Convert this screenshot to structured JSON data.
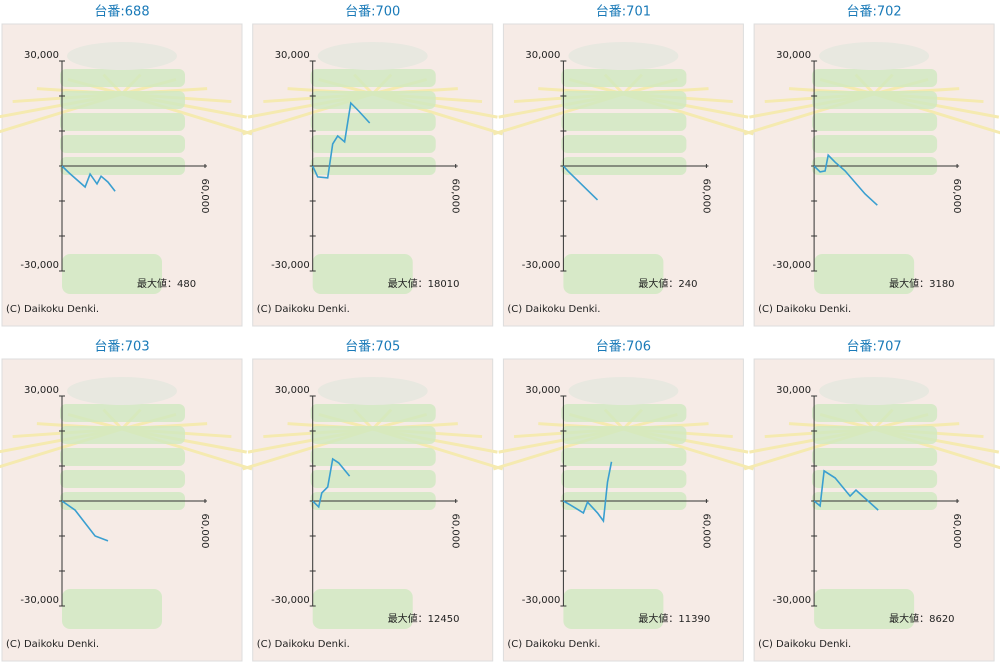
{
  "chart_data": [
    {
      "type": "line",
      "title": "台番:688",
      "x": [
        0,
        3000,
        9700,
        11800,
        14700,
        16400,
        19300,
        22300
      ],
      "values": [
        0,
        -2000,
        -6000,
        -2300,
        -5100,
        -2900,
        -4600,
        -7200
      ],
      "color": "#3a9fd0",
      "xlim": [
        0,
        60000
      ],
      "ylim": [
        -30000,
        30000
      ],
      "xticks": [
        {
          "value": 60000,
          "label": "60,000"
        }
      ],
      "yticks": [
        {
          "value": 30000,
          "label": "30,000"
        },
        {
          "value": -30000,
          "label": "-30,000"
        }
      ],
      "minor_yticks": [
        20000,
        10000,
        0,
        -10000,
        -20000
      ],
      "max_label": "最大値：480",
      "copyright": "(C) Daikoku Denki."
    },
    {
      "type": "line",
      "title": "台番:700",
      "x": [
        0,
        2100,
        6300,
        8400,
        10500,
        13400,
        16000,
        19300,
        23900
      ],
      "values": [
        0,
        -3100,
        -3400,
        6300,
        8600,
        6900,
        18000,
        15700,
        12300
      ],
      "color": "#3a9fd0",
      "xlim": [
        0,
        60000
      ],
      "ylim": [
        -30000,
        30000
      ],
      "xticks": [
        {
          "value": 60000,
          "label": "60,000"
        }
      ],
      "yticks": [
        {
          "value": 30000,
          "label": "30,000"
        },
        {
          "value": -30000,
          "label": "-30,000"
        }
      ],
      "minor_yticks": [
        20000,
        10000,
        0,
        -10000,
        -20000
      ],
      "max_label": "最大値：18010",
      "copyright": "(C) Daikoku Denki."
    },
    {
      "type": "line",
      "title": "台番:701",
      "x": [
        0,
        2000,
        14300
      ],
      "values": [
        0,
        -1500,
        -9700
      ],
      "color": "#3a9fd0",
      "xlim": [
        0,
        60000
      ],
      "ylim": [
        -30000,
        30000
      ],
      "xticks": [
        {
          "value": 60000,
          "label": "60,000"
        }
      ],
      "yticks": [
        {
          "value": 30000,
          "label": "30,000"
        },
        {
          "value": -30000,
          "label": "-30,000"
        }
      ],
      "minor_yticks": [
        20000,
        10000,
        0,
        -10000,
        -20000
      ],
      "max_label": "最大値：240",
      "copyright": "(C) Daikoku Denki."
    },
    {
      "type": "line",
      "title": "台番:702",
      "x": [
        0,
        2500,
        4600,
        5900,
        8800,
        13000,
        21400,
        26500
      ],
      "values": [
        0,
        -1700,
        -1400,
        3100,
        1100,
        -1400,
        -8000,
        -11200
      ],
      "color": "#3a9fd0",
      "xlim": [
        0,
        60000
      ],
      "ylim": [
        -30000,
        30000
      ],
      "xticks": [
        {
          "value": 60000,
          "label": "60,000"
        }
      ],
      "yticks": [
        {
          "value": 30000,
          "label": "30,000"
        },
        {
          "value": -30000,
          "label": "-30,000"
        }
      ],
      "minor_yticks": [
        20000,
        10000,
        0,
        -10000,
        -20000
      ],
      "max_label": "最大値：3180",
      "copyright": "(C) Daikoku Denki."
    },
    {
      "type": "line",
      "title": "台番:703",
      "x": [
        0,
        5500,
        13900,
        19300
      ],
      "values": [
        0,
        -2600,
        -10000,
        -11400
      ],
      "color": "#3a9fd0",
      "xlim": [
        0,
        60000
      ],
      "ylim": [
        -30000,
        30000
      ],
      "xticks": [
        {
          "value": 60000,
          "label": "60,000"
        }
      ],
      "yticks": [
        {
          "value": 30000,
          "label": "30,000"
        },
        {
          "value": -30000,
          "label": "-30,000"
        }
      ],
      "minor_yticks": [
        20000,
        10000,
        0,
        -10000,
        -20000
      ],
      "copyright": "(C) Daikoku Denki."
    },
    {
      "type": "line",
      "title": "台番:705",
      "x": [
        0,
        2500,
        3800,
        6300,
        8400,
        10900,
        15500
      ],
      "values": [
        0,
        -1700,
        2300,
        4000,
        12000,
        10900,
        7100
      ],
      "color": "#3a9fd0",
      "xlim": [
        0,
        60000
      ],
      "ylim": [
        -30000,
        30000
      ],
      "xticks": [
        {
          "value": 60000,
          "label": "60,000"
        }
      ],
      "yticks": [
        {
          "value": 30000,
          "label": "30,000"
        },
        {
          "value": -30000,
          "label": "-30,000"
        }
      ],
      "minor_yticks": [
        20000,
        10000,
        0,
        -10000,
        -20000
      ],
      "max_label": "最大値：12450",
      "copyright": "(C) Daikoku Denki."
    },
    {
      "type": "line",
      "title": "台番:706",
      "x": [
        0,
        2900,
        8400,
        10100,
        14300,
        16800,
        18500,
        20200
      ],
      "values": [
        0,
        -1100,
        -3400,
        -300,
        -3400,
        -5700,
        5400,
        11200
      ],
      "color": "#3a9fd0",
      "xlim": [
        0,
        60000
      ],
      "ylim": [
        -30000,
        30000
      ],
      "xticks": [
        {
          "value": 60000,
          "label": "60,000"
        }
      ],
      "yticks": [
        {
          "value": 30000,
          "label": "30,000"
        },
        {
          "value": -30000,
          "label": "-30,000"
        }
      ],
      "minor_yticks": [
        20000,
        10000,
        0,
        -10000,
        -20000
      ],
      "max_label": "最大値：11390",
      "copyright": "(C) Daikoku Denki."
    },
    {
      "type": "line",
      "title": "台番:707",
      "x": [
        0,
        2500,
        4200,
        8800,
        15100,
        17600,
        26900
      ],
      "values": [
        0,
        -1400,
        8600,
        6600,
        1400,
        3100,
        -2600
      ],
      "color": "#3a9fd0",
      "xlim": [
        0,
        60000
      ],
      "ylim": [
        -30000,
        30000
      ],
      "xticks": [
        {
          "value": 60000,
          "label": "60,000"
        }
      ],
      "yticks": [
        {
          "value": 30000,
          "label": "30,000"
        },
        {
          "value": -30000,
          "label": "-30,000"
        }
      ],
      "minor_yticks": [
        20000,
        10000,
        0,
        -10000,
        -20000
      ],
      "max_label": "最大値：8620",
      "copyright": "(C) Daikoku Denki."
    }
  ]
}
